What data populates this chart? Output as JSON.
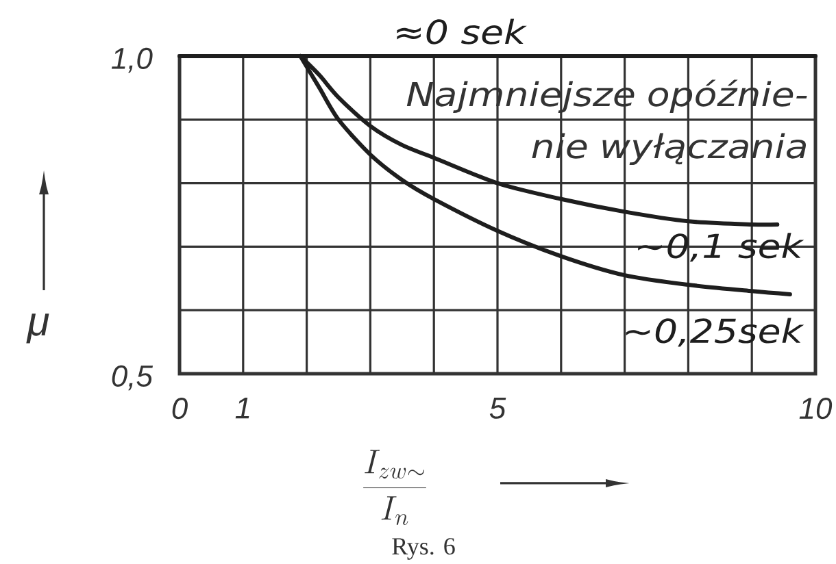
{
  "chart_data": {
    "type": "line",
    "xlabel": "\\frac{I_{zw\\sim}}{I_{n}}",
    "ylabel": "μ",
    "annotations": [
      "Najmniejsze opóźnie-nie wyłączania",
      "Rys. 6"
    ],
    "series": [
      {
        "name": "≈0 sek",
        "color": "#1e1e1e",
        "x": [
          0,
          10
        ],
        "values": [
          1.0,
          1.0
        ]
      },
      {
        "name": "~0,1 sek",
        "color": "#1e1e1e",
        "x": [
          1.9,
          2.2,
          2.5,
          3,
          3.5,
          4,
          5,
          6,
          7,
          8,
          9,
          9.4
        ],
        "values": [
          1.0,
          0.97,
          0.935,
          0.89,
          0.86,
          0.84,
          0.8,
          0.775,
          0.755,
          0.74,
          0.735,
          0.735
        ]
      },
      {
        "name": "~0,25sek",
        "color": "#1e1e1e",
        "x": [
          1.9,
          2.2,
          2.5,
          3,
          3.5,
          4,
          5,
          6,
          7,
          8,
          9,
          9.6
        ],
        "values": [
          1.0,
          0.95,
          0.9,
          0.845,
          0.805,
          0.775,
          0.725,
          0.685,
          0.655,
          0.64,
          0.63,
          0.625
        ]
      }
    ],
    "xlim": [
      0,
      10
    ],
    "ylim": [
      0.5,
      1.0
    ],
    "xticks": [
      0,
      1,
      {
        "value": 2,
        "label": null
      },
      {
        "value": 3,
        "label": null
      },
      {
        "value": 4,
        "label": null
      },
      5,
      {
        "value": 6,
        "label": null
      },
      {
        "value": 7,
        "label": null
      },
      {
        "value": 8,
        "label": null
      },
      {
        "value": 9,
        "label": null
      },
      10
    ],
    "yticks": [
      {
        "value": 0.5,
        "label": "0,5"
      },
      {
        "value": 0.6,
        "label": null
      },
      {
        "value": 0.7,
        "label": null
      },
      {
        "value": 0.8,
        "label": null
      },
      {
        "value": 0.9,
        "label": null
      },
      {
        "value": 1.0,
        "label": "1,0"
      }
    ],
    "grid": true,
    "marker": "none",
    "line_style": "solid"
  }
}
